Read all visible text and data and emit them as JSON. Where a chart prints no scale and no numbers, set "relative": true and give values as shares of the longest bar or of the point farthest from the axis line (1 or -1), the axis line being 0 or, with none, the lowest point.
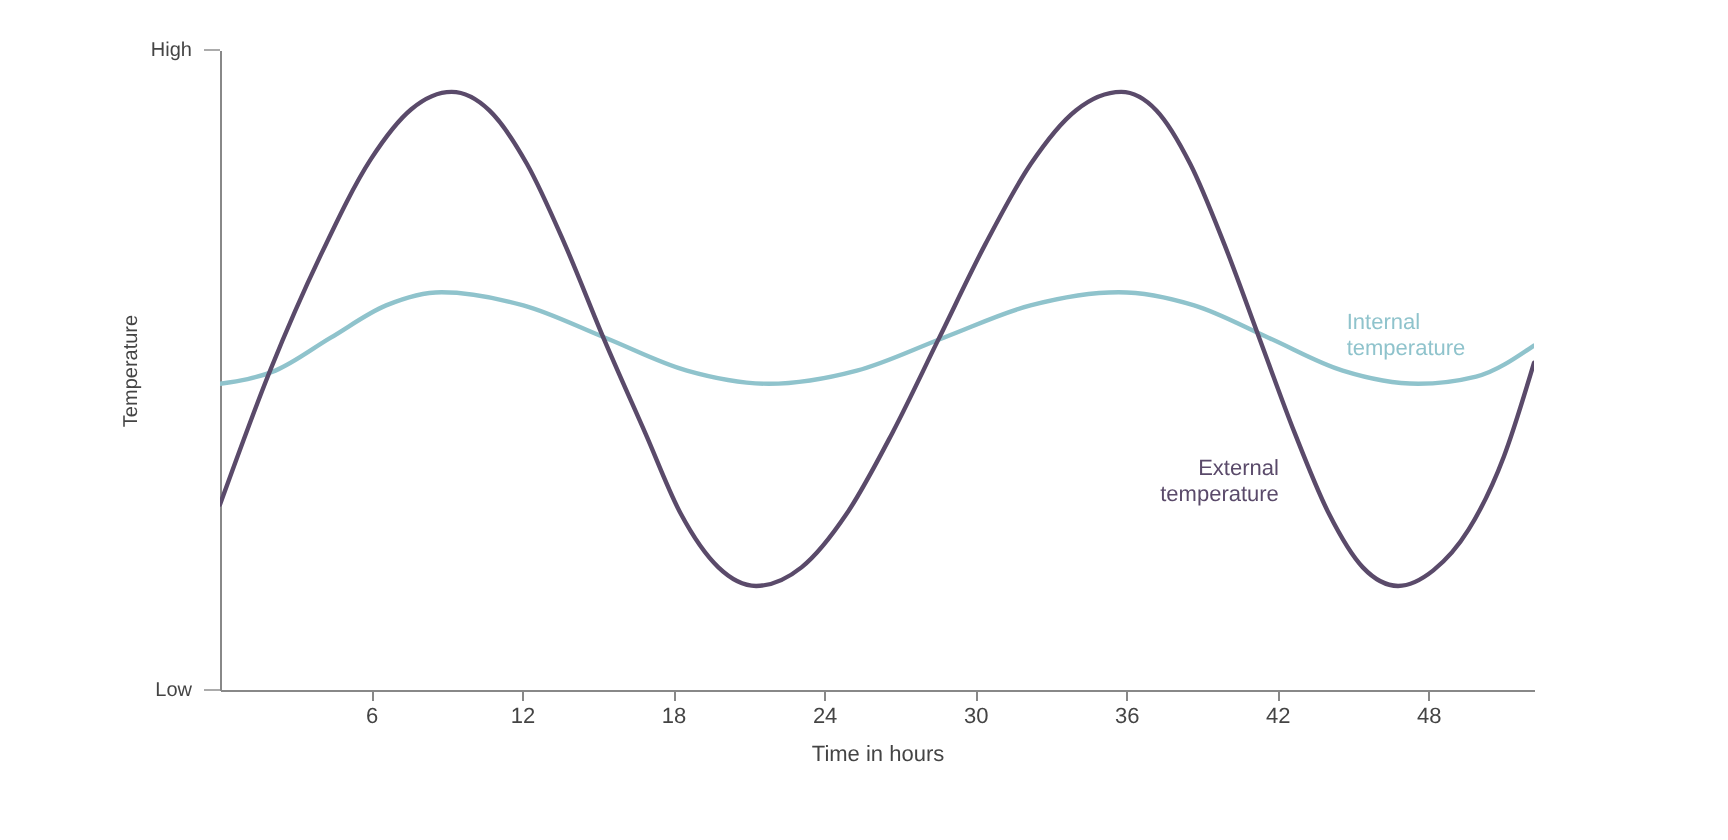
{
  "chart_data": {
    "type": "line",
    "relative": true,
    "xlabel": "Time in hours",
    "ylabel": "Temperature",
    "xlim": [
      0,
      52.2
    ],
    "xticks": [
      6,
      12,
      18,
      24,
      30,
      36,
      42,
      48
    ],
    "grid": false,
    "marker": "none",
    "line_style": "solid",
    "annotations": [
      "High",
      "Low"
    ],
    "series": [
      {
        "name": "Internal temperature",
        "color": "#8fc3cc",
        "x": [
          0,
          2.2,
          4.4,
          6.6,
          8.8,
          12.05,
          15.3,
          18.55,
          21.8,
          25.3,
          28.75,
          32.2,
          35.7,
          38.7,
          41.65,
          44.6,
          47.6,
          49.9,
          52.2
        ],
        "values": [
          0.512,
          0.534,
          0.589,
          0.643,
          0.665,
          0.643,
          0.589,
          0.534,
          0.512,
          0.534,
          0.589,
          0.643,
          0.665,
          0.643,
          0.589,
          0.534,
          0.512,
          0.524,
          0.576
        ]
      },
      {
        "name": "External temperature",
        "color": "#5a4a6a",
        "x": [
          0,
          2,
          4,
          6,
          7.6,
          9.2,
          10.7,
          12.2,
          13.7,
          15.25,
          16.9,
          18.3,
          19.8,
          21.3,
          23.1,
          24.9,
          26.7,
          28.55,
          30.4,
          32.2,
          34,
          35.8,
          37.2,
          38.55,
          39.9,
          41.3,
          42.7,
          44.05,
          45.4,
          46.8,
          48.2,
          49.6,
          51,
          52.2
        ],
        "values": [
          0.31,
          0.535,
          0.727,
          0.888,
          0.971,
          1,
          0.969,
          0.879,
          0.745,
          0.587,
          0.429,
          0.295,
          0.205,
          0.174,
          0.205,
          0.295,
          0.429,
          0.587,
          0.745,
          0.879,
          0.969,
          1,
          0.969,
          0.879,
          0.745,
          0.587,
          0.429,
          0.295,
          0.205,
          0.174,
          0.2,
          0.268,
          0.39,
          0.547
        ]
      }
    ]
  }
}
